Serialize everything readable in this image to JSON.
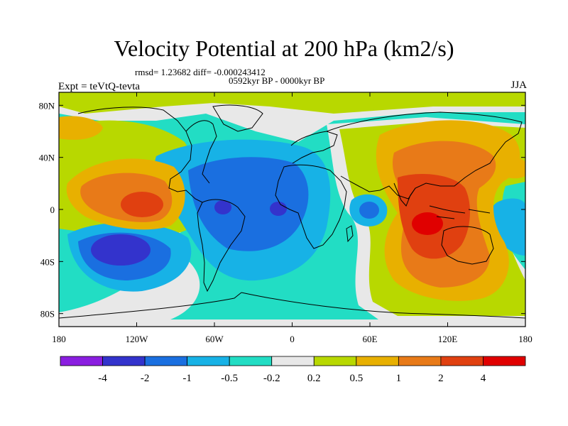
{
  "header": {
    "title": "Velocity Potential at 200 hPa (km2/s)",
    "stats": "rmsd= 1.23682 diff= -0.000243412",
    "period": "0592kyr BP - 0000kyr BP",
    "expt": "Expt = teVtQ-tevta",
    "season": "JJA"
  },
  "chart_data": {
    "type": "heatmap",
    "title": "Velocity Potential at 200 hPa (km2/s)",
    "xlabel": "",
    "ylabel": "",
    "xlim": [
      -180,
      180
    ],
    "ylim": [
      -90,
      90
    ],
    "x_ticks": [
      {
        "value": -180,
        "label": "180"
      },
      {
        "value": -120,
        "label": "120W"
      },
      {
        "value": -60,
        "label": "60W"
      },
      {
        "value": 0,
        "label": "0"
      },
      {
        "value": 60,
        "label": "60E"
      },
      {
        "value": 120,
        "label": "120E"
      },
      {
        "value": 180,
        "label": "180"
      }
    ],
    "y_ticks": [
      {
        "value": 80,
        "label": "80N"
      },
      {
        "value": 40,
        "label": "40N"
      },
      {
        "value": 0,
        "label": "0"
      },
      {
        "value": -40,
        "label": "40S"
      },
      {
        "value": -80,
        "label": "80S"
      }
    ],
    "colorbar": {
      "levels": [
        "-4",
        "-2",
        "-1",
        "-0.5",
        "-0.2",
        "0.2",
        "0.5",
        "1",
        "2",
        "4"
      ],
      "colors": [
        "#8a1ee0",
        "#3333cc",
        "#1a6fe0",
        "#17b2e6",
        "#22ddc4",
        "#e8e8e8",
        "#b8d800",
        "#e8b000",
        "#e87a18",
        "#e04010",
        "#e00000"
      ]
    },
    "field": [
      {
        "name": "negative-basin-south-pacific",
        "lon": -147,
        "lat": -30,
        "value": -3.5
      },
      {
        "name": "negative-basin-amazon",
        "lon": -54,
        "lat": 1,
        "value": -3.0
      },
      {
        "name": "negative-basin-west-africa",
        "lon": -10,
        "lat": 0,
        "value": -2.5
      },
      {
        "name": "negative-basin-atlantic",
        "lon": -35,
        "lat": -15,
        "value": -1.2
      },
      {
        "name": "negative-basin-indian-west",
        "lon": 48,
        "lat": 2,
        "value": -1.2
      },
      {
        "name": "negative-basin-west-pacific",
        "lon": 172,
        "lat": -8,
        "value": -1.0
      },
      {
        "name": "positive-peak-east-pacific",
        "lon": -110,
        "lat": 5,
        "value": 3.0
      },
      {
        "name": "positive-peak-indonesia",
        "lon": 105,
        "lat": -12,
        "value": 3.5
      },
      {
        "name": "positive-ridge-asia",
        "lon": 90,
        "lat": 30,
        "value": 1.6
      },
      {
        "name": "positive-north-pacific",
        "lon": -160,
        "lat": 62,
        "value": 0.6
      }
    ]
  }
}
